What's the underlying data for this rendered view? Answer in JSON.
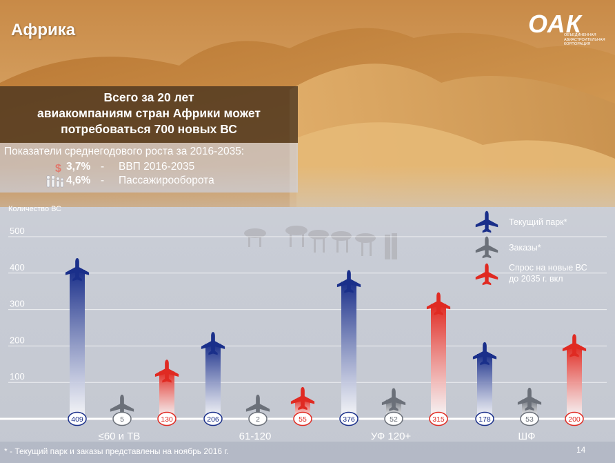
{
  "region_title": "Африка",
  "logo": {
    "mark": "ОАК",
    "subtitle_lines": [
      "Объединенная",
      "авиастроительная",
      "корпорация"
    ]
  },
  "headline": {
    "lines": [
      "Всего за 20 лет",
      "авиакомпаниям стран Африки может",
      "потребоваться 700 новых ВС"
    ]
  },
  "growth": {
    "title": "Показатели среднегодового роста за 2016-2035:",
    "items": [
      {
        "icon": "dollar-icon",
        "value": "3,7%",
        "dash": "-",
        "label": "ВВП 2016-2035"
      },
      {
        "icon": "people-icon",
        "value": "4,6%",
        "dash": "-",
        "label": "Пассажирооборота"
      }
    ]
  },
  "chart_data": {
    "type": "bar",
    "ylabel": "Количество ВС",
    "ylim": [
      0,
      500
    ],
    "yticks": [
      100,
      200,
      300,
      400,
      500
    ],
    "grid": true,
    "legend_position": "top-right",
    "categories": [
      "≤60 и ТВ",
      "61-120",
      "УФ 120+",
      "ШФ"
    ],
    "series": [
      {
        "name": "Текущий парк*",
        "color": "#1a2f8a",
        "icon": "airplane-icon",
        "values": [
          409,
          206,
          376,
          178
        ]
      },
      {
        "name": "Заказы*",
        "color": "#6b7079",
        "icon": "airplane-icon",
        "values": [
          5,
          2,
          52,
          53
        ]
      },
      {
        "name": "Спрос на новые ВС до 2035 г. вкл",
        "color": "#e02a22",
        "icon": "airplane-icon",
        "values": [
          130,
          55,
          315,
          200
        ]
      }
    ]
  },
  "legend": {
    "items": [
      {
        "lines": [
          "Текущий парк*"
        ],
        "color": "#1a2f8a"
      },
      {
        "lines": [
          "Заказы*"
        ],
        "color": "#6b7079"
      },
      {
        "lines": [
          "Спрос на новые ВС",
          "до 2035 г. вкл"
        ],
        "color": "#e02a22"
      }
    ]
  },
  "footnote": "* - Текущий парк и заказы представлены на ноябрь 2016 г.",
  "page_number": "14"
}
